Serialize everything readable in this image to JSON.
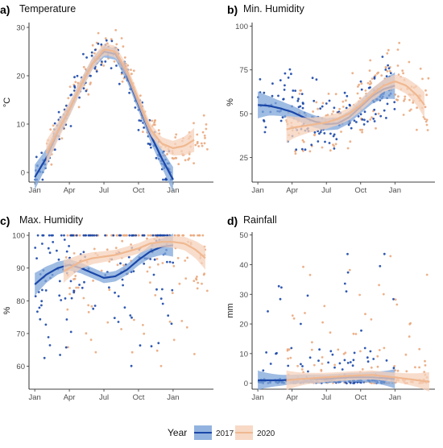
{
  "legend": {
    "title": "Year",
    "entries": [
      {
        "label": "2017",
        "color": "#1a47a8",
        "band_color": "#7fa6d9"
      },
      {
        "label": "2020",
        "color": "#f0b890",
        "band_color": "#f6d2bb"
      }
    ]
  },
  "chart_data": [
    {
      "panel": "a)",
      "title": "Temperature",
      "type": "scatter",
      "ylabel": "°C",
      "x_ticks": [
        "Jan",
        "Apr",
        "Jul",
        "Oct",
        "Jan"
      ],
      "x_tick_months": [
        0,
        3,
        6,
        9,
        12
      ],
      "xlim": [
        -0.5,
        15.5
      ],
      "ylim": [
        -2,
        31
      ],
      "y_ticks": [
        0,
        10,
        20,
        30
      ],
      "series": [
        {
          "name": "2017",
          "x_range": [
            0,
            12
          ],
          "smooth": [
            [
              0,
              -1
            ],
            [
              1,
              3
            ],
            [
              2,
              8.5
            ],
            [
              3,
              13
            ],
            [
              4,
              18
            ],
            [
              5,
              22.5
            ],
            [
              6,
              25
            ],
            [
              7,
              24.5
            ],
            [
              8,
              20
            ],
            [
              9,
              14
            ],
            [
              10,
              8
            ],
            [
              11,
              3
            ],
            [
              12,
              -1.5
            ]
          ]
        },
        {
          "name": "2020",
          "x_range": [
            1,
            15
          ],
          "smooth": [
            [
              1,
              4
            ],
            [
              2,
              8.5
            ],
            [
              3,
              13
            ],
            [
              4,
              18
            ],
            [
              5,
              22.5
            ],
            [
              6,
              25.5
            ],
            [
              7,
              25
            ],
            [
              8,
              21
            ],
            [
              9,
              15
            ],
            [
              10,
              9
            ],
            [
              11,
              6
            ],
            [
              12,
              5
            ],
            [
              13,
              5.5
            ],
            [
              14,
              7
            ]
          ]
        }
      ]
    },
    {
      "panel": "b)",
      "title": "Min. Humidity",
      "type": "scatter",
      "ylabel": "%",
      "x_ticks": [
        "Jan",
        "Apr",
        "Jul",
        "Oct",
        "Jan"
      ],
      "x_tick_months": [
        0,
        3,
        6,
        9,
        12
      ],
      "xlim": [
        -0.5,
        15.5
      ],
      "ylim": [
        11,
        102
      ],
      "y_ticks": [
        25,
        50,
        75,
        100
      ],
      "series": [
        {
          "name": "2017",
          "x_range": [
            0,
            12
          ],
          "smooth": [
            [
              0,
              55
            ],
            [
              1,
              54.5
            ],
            [
              2,
              53
            ],
            [
              3,
              51
            ],
            [
              4,
              48
            ],
            [
              5,
              45.5
            ],
            [
              6,
              44
            ],
            [
              7,
              44.5
            ],
            [
              8,
              48
            ],
            [
              9,
              54
            ],
            [
              10,
              60
            ],
            [
              11,
              64
            ],
            [
              12,
              66
            ]
          ]
        },
        {
          "name": "2020",
          "x_range": [
            2.5,
            15
          ],
          "smooth": [
            [
              2.5,
              41
            ],
            [
              3,
              42
            ],
            [
              4,
              43
            ],
            [
              5,
              44
            ],
            [
              6,
              45
            ],
            [
              7,
              47
            ],
            [
              8,
              50
            ],
            [
              9,
              55
            ],
            [
              10,
              61
            ],
            [
              11,
              66
            ],
            [
              12,
              68.5
            ],
            [
              13,
              66
            ],
            [
              14,
              60
            ],
            [
              14.7,
              54
            ]
          ]
        }
      ]
    },
    {
      "panel": "c)",
      "title": "Max. Humidity",
      "type": "scatter",
      "ylabel": "%",
      "x_ticks": [
        "Jan",
        "Apr",
        "Jul",
        "Oct",
        "Jan"
      ],
      "x_tick_months": [
        0,
        3,
        6,
        9,
        12
      ],
      "xlim": [
        -0.5,
        15.5
      ],
      "ylim": [
        53,
        101
      ],
      "y_ticks": [
        60,
        70,
        80,
        90,
        100
      ],
      "series": [
        {
          "name": "2017",
          "x_range": [
            0,
            12
          ],
          "smooth": [
            [
              0,
              85
            ],
            [
              1,
              88
            ],
            [
              2,
              90
            ],
            [
              3,
              91
            ],
            [
              4,
              90
            ],
            [
              5,
              88.5
            ],
            [
              6,
              87
            ],
            [
              7,
              87.5
            ],
            [
              8,
              89.5
            ],
            [
              9,
              92.5
            ],
            [
              10,
              95
            ],
            [
              11,
              96.5
            ],
            [
              12,
              97
            ]
          ]
        },
        {
          "name": "2020",
          "x_range": [
            2.5,
            15
          ],
          "smooth": [
            [
              2.5,
              89
            ],
            [
              3,
              90
            ],
            [
              4,
              92
            ],
            [
              5,
              93
            ],
            [
              6,
              93.5
            ],
            [
              7,
              94
            ],
            [
              8,
              95
            ],
            [
              9,
              96
            ],
            [
              10,
              97.5
            ],
            [
              11,
              98
            ],
            [
              12,
              98
            ],
            [
              13,
              97.5
            ],
            [
              14,
              95.5
            ],
            [
              14.8,
              93
            ]
          ]
        }
      ]
    },
    {
      "panel": "d)",
      "title": "Rainfall",
      "type": "scatter",
      "ylabel": "mm",
      "x_ticks": [
        "Jan",
        "Apr",
        "Jul",
        "Oct",
        "Jan"
      ],
      "x_tick_months": [
        0,
        3,
        6,
        9,
        12
      ],
      "xlim": [
        -0.5,
        15.5
      ],
      "ylim": [
        -2,
        51
      ],
      "y_ticks": [
        0,
        10,
        20,
        30,
        40,
        50
      ],
      "series": [
        {
          "name": "2017",
          "x_range": [
            0,
            12
          ],
          "smooth": [
            [
              0,
              1
            ],
            [
              2,
              1
            ],
            [
              4,
              1.5
            ],
            [
              6,
              1.5
            ],
            [
              8,
              2
            ],
            [
              10,
              2
            ],
            [
              12,
              1.5
            ]
          ]
        },
        {
          "name": "2020",
          "x_range": [
            2.5,
            15
          ],
          "smooth": [
            [
              2.5,
              1
            ],
            [
              4,
              1.5
            ],
            [
              6,
              2
            ],
            [
              8,
              2.5
            ],
            [
              10,
              2.8
            ],
            [
              12,
              2
            ],
            [
              14,
              1
            ],
            [
              15,
              0.5
            ]
          ]
        }
      ]
    }
  ]
}
